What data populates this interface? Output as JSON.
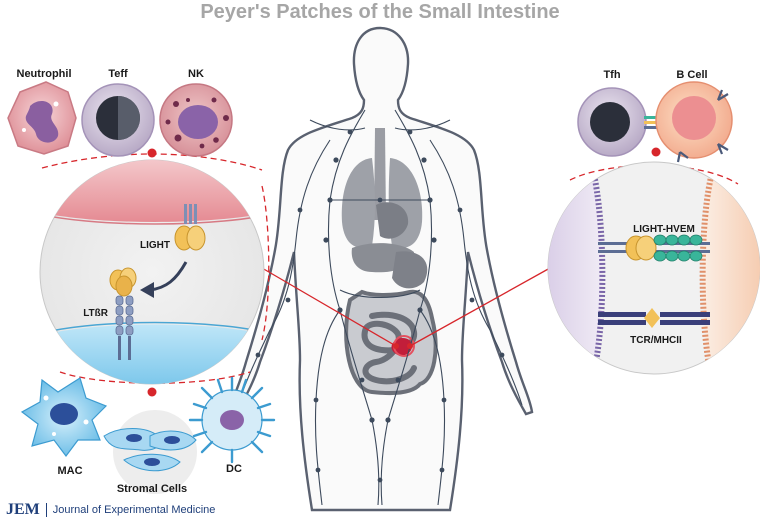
{
  "title": "Peyer's Patches of the Small Intestine",
  "cells_left": {
    "neutrophil": "Neutrophil",
    "teff": "Teff",
    "nk": "NK"
  },
  "cells_right": {
    "tfh": "Tfh",
    "b_cell": "B Cell"
  },
  "left_inset": {
    "light": "LIGHT",
    "ltbr": "LTßR"
  },
  "right_inset": {
    "light_hvem": "LIGHT-HVEM",
    "tcr_mhcii": "TCR/MHCII"
  },
  "bottom_cells": {
    "mac": "MAC",
    "stromal": "Stromal Cells",
    "dc": "DC"
  },
  "footer": {
    "journal_mark": "JEM",
    "journal_name": "Journal of Experimental Medicine"
  },
  "colors": {
    "connector_red": "#d7262b",
    "body_outline": "#5a6170",
    "organs_gray": "#8c8f96",
    "lymph_dark": "#3d4a5c",
    "membrane_pink": "#e79aa0",
    "membrane_blue": "#6fc3ea",
    "light_protein": "#f2c158",
    "receptor_blue": "#7d8fb5",
    "hvem_teal": "#39b59a",
    "title_gray": "#a6a6a6"
  }
}
